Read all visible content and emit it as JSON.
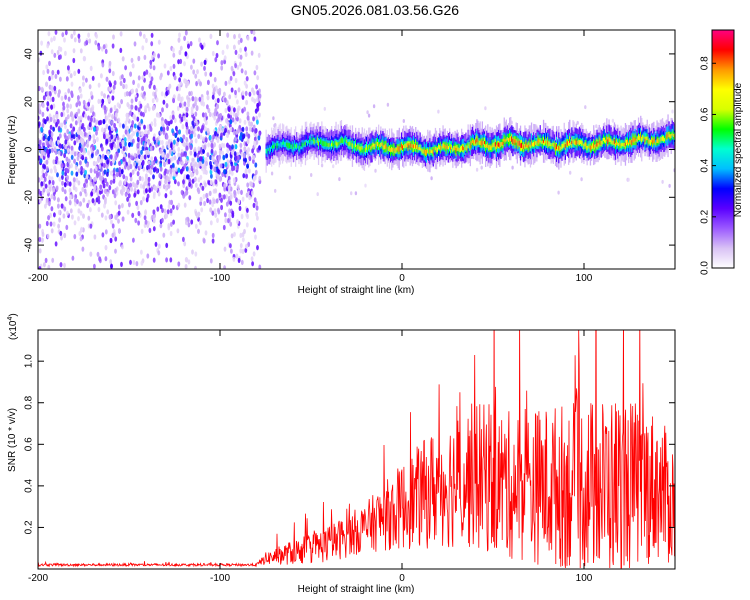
{
  "title": "GN05.2026.081.03.56.G26",
  "chart_data": [
    {
      "type": "heatmap",
      "xlabel": "Height of straight line (km)",
      "ylabel": "Frequency (Hz)",
      "xlim": [
        -200,
        150
      ],
      "ylim": [
        -50,
        50
      ],
      "xticks": [
        -200,
        -100,
        0,
        100
      ],
      "yticks": [
        -40,
        -20,
        0,
        20,
        40
      ],
      "colorbar": {
        "label": "Normalized spectral amplitude",
        "range": [
          0,
          0.93
        ],
        "ticks": [
          "0.0",
          "0.2",
          "0.4",
          "0.6",
          "0.8"
        ],
        "colors": [
          "#ffffff",
          "#d9c2f5",
          "#9b59ff",
          "#5a00ff",
          "#0000ff",
          "#00bfff",
          "#00ffd0",
          "#00ff00",
          "#d8ff00",
          "#ffff00",
          "#ff9900",
          "#ff0000",
          "#ff0080"
        ]
      },
      "ridge": {
        "x": [
          -75,
          -60,
          -40,
          -20,
          0,
          20,
          40,
          60,
          80,
          100,
          120,
          150
        ],
        "frequency": [
          0,
          2,
          3,
          1,
          1,
          0,
          2,
          3,
          2,
          2,
          3,
          5
        ],
        "peak_amplitude": [
          0.5,
          0.55,
          0.6,
          0.7,
          0.8,
          0.75,
          0.8,
          0.85,
          0.8,
          0.8,
          0.8,
          0.75
        ]
      },
      "noise_region": {
        "x": [
          -200,
          -78
        ],
        "frequency": [
          -50,
          50
        ],
        "amplitude": [
          0.05,
          0.3
        ]
      },
      "grid": false
    },
    {
      "type": "line",
      "xlabel": "Height of straight line (km)",
      "ylabel": "SNR (10 * v/v)",
      "yscale_label": "(x10",
      "yscale_exp": "4",
      "yscale_close": ")",
      "xlim": [
        -200,
        150
      ],
      "ylim": [
        0,
        1.15
      ],
      "xticks": [
        -200,
        -100,
        0,
        100
      ],
      "yticks": [
        "0.2",
        "0.4",
        "0.6",
        "0.8",
        "1.0"
      ],
      "series": [
        {
          "color": "#ff0000",
          "x": [
            -200,
            -150,
            -100,
            -80,
            -75,
            -60,
            -40,
            -20,
            0,
            20,
            40,
            60,
            80,
            100,
            120,
            140,
            150
          ],
          "values": [
            0.02,
            0.02,
            0.02,
            0.02,
            0.05,
            0.08,
            0.12,
            0.2,
            0.3,
            0.4,
            0.45,
            0.4,
            0.4,
            0.4,
            0.4,
            0.4,
            0.3
          ],
          "spread": [
            0.01,
            0.01,
            0.01,
            0.01,
            0.05,
            0.1,
            0.15,
            0.2,
            0.35,
            0.5,
            0.6,
            0.6,
            0.65,
            0.7,
            0.75,
            0.6,
            0.5
          ]
        }
      ],
      "grid": false
    }
  ]
}
